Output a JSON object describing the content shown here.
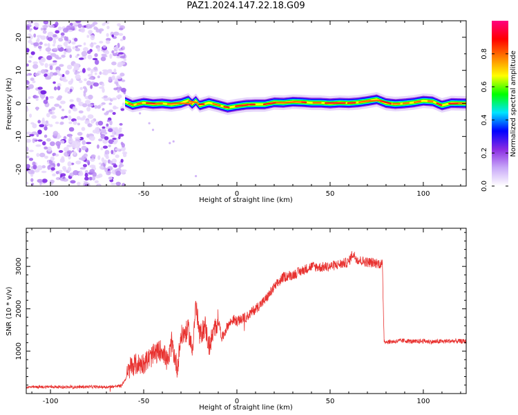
{
  "title": "PAZ1.2024.147.22.18.G09",
  "chart_data": [
    {
      "type": "heatmap",
      "xlabel": "Height of straight line (km)",
      "ylabel": "Frequency (Hz)",
      "xlim": [
        -113,
        123
      ],
      "ylim": [
        -25,
        25
      ],
      "xticks": [
        -100,
        -50,
        0,
        50,
        100
      ],
      "yticks": [
        -20,
        -10,
        0,
        10,
        20
      ],
      "noise_region": [
        -113,
        -60
      ],
      "signal_track": {
        "x": [
          -60,
          -56,
          -50,
          -45,
          -40,
          -35,
          -30,
          -26,
          -24,
          -22,
          -20,
          -15,
          -10,
          -5,
          0,
          5,
          10,
          15,
          20,
          25,
          30,
          35,
          40,
          45,
          50,
          55,
          60,
          65,
          70,
          75,
          80,
          85,
          90,
          95,
          100,
          105,
          110,
          115,
          123
        ],
        "freq": [
          0.5,
          -0.5,
          0.2,
          -0.2,
          0.0,
          -0.3,
          0.1,
          0.9,
          -0.2,
          0.8,
          -0.6,
          0.2,
          -0.5,
          -1.3,
          -0.8,
          -0.4,
          -0.3,
          -0.3,
          0.3,
          0.2,
          0.5,
          0.4,
          0.2,
          0.2,
          0.0,
          0.2,
          0.1,
          0.3,
          0.7,
          1.2,
          0.1,
          -0.2,
          0.0,
          0.3,
          0.8,
          0.6,
          -0.6,
          0.1,
          0.0
        ]
      },
      "colorbar": {
        "label": "Normalized spectral amplitude",
        "ticks": [
          0.0,
          0.2,
          0.4,
          0.6,
          0.8
        ],
        "range": [
          0,
          1
        ],
        "colors": [
          "#ffffff",
          "#c8a8f8",
          "#8a2be2",
          "#0000ff",
          "#00e5ff",
          "#00ff00",
          "#ffff00",
          "#ff8000",
          "#ff0000",
          "#ff0080"
        ]
      }
    },
    {
      "type": "line",
      "xlabel": "Height of straight line (km)",
      "ylabel": "SNR (10 * v/v)",
      "xlim": [
        -113,
        123
      ],
      "ylim": [
        0,
        3900
      ],
      "xticks": [
        -100,
        -50,
        0,
        50,
        100
      ],
      "yticks": [
        1000,
        2000,
        3000
      ],
      "color": "#e8312f",
      "series": [
        {
          "x": [
            -113,
            -100,
            -90,
            -80,
            -70,
            -62,
            -59,
            -57,
            -55,
            -50,
            -45,
            -40,
            -37,
            -35,
            -32,
            -30,
            -26,
            -24,
            -22,
            -20,
            -17,
            -15,
            -12,
            -10,
            -8,
            -5,
            -2,
            0,
            5,
            10,
            15,
            20,
            25,
            30,
            35,
            40,
            45,
            50,
            55,
            60,
            62,
            65,
            70,
            75,
            78,
            79,
            80,
            85,
            90,
            95,
            100,
            105,
            110,
            115,
            123
          ],
          "values": [
            150,
            160,
            150,
            160,
            155,
            180,
            400,
            650,
            680,
            720,
            900,
            1050,
            700,
            1200,
            600,
            1350,
            1500,
            1000,
            2100,
            1350,
            1600,
            1100,
            1500,
            1750,
            1300,
            1600,
            1750,
            1700,
            1800,
            2000,
            2200,
            2500,
            2750,
            2800,
            2900,
            3000,
            2980,
            3000,
            3050,
            3100,
            3300,
            3150,
            3100,
            3080,
            3050,
            1250,
            1220,
            1230,
            1250,
            1220,
            1240,
            1220,
            1230,
            1240,
            1230
          ]
        }
      ]
    }
  ]
}
